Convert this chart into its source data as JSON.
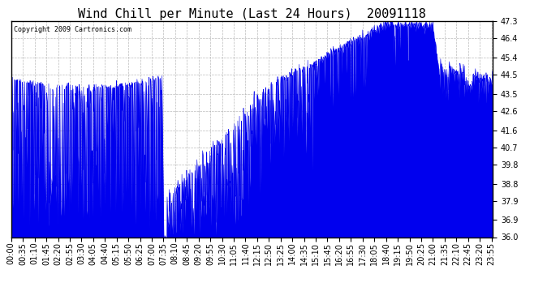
{
  "title": "Wind Chill per Minute (Last 24 Hours)  20091118",
  "copyright": "Copyright 2009 Cartronics.com",
  "ylim": [
    36.0,
    47.3
  ],
  "yticks": [
    36.0,
    36.9,
    37.9,
    38.8,
    39.8,
    40.7,
    41.6,
    42.6,
    43.5,
    44.5,
    45.4,
    46.4,
    47.3
  ],
  "line_color": "#0000ee",
  "bg_color": "#ffffff",
  "grid_color": "#aaaaaa",
  "title_fontsize": 11,
  "tick_fontsize": 7,
  "xlabel_rotation": 90,
  "xtick_interval": 35
}
